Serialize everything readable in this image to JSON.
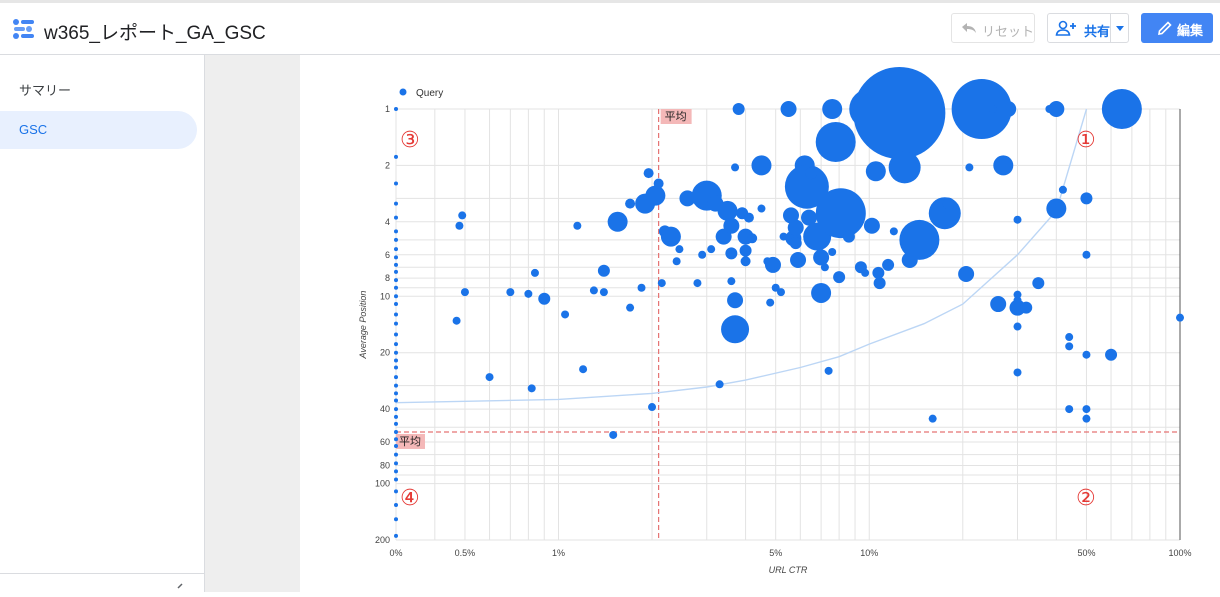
{
  "header": {
    "title": "w365_レポート_GA_GSC",
    "reset_label": "リセット",
    "share_label": "共有",
    "edit_label": "編集"
  },
  "sidebar": {
    "items": [
      {
        "label": "サマリー",
        "active": false
      },
      {
        "label": "GSC",
        "active": true
      }
    ]
  },
  "colors": {
    "accent": "#1a73e8",
    "point": "#1a73e8",
    "average_line": "#e57373",
    "nav_active_bg": "#e8f0fe",
    "edit_button": "#4285f4"
  },
  "icons": [
    "dashboard-logo-icon",
    "undo-icon",
    "person-add-icon",
    "pencil-icon",
    "chevron-down-icon",
    "collapse-icon"
  ],
  "chart_data": {
    "type": "scatter",
    "legend": {
      "series_name": "Query",
      "placement": "top-left"
    },
    "xlabel": "URL CTR",
    "ylabel": "Average Position",
    "x_scale": "log",
    "y_scale": "log-reversed",
    "xlim": [
      0.0,
      100
    ],
    "ylim": [
      1,
      200
    ],
    "x_ticks": [
      {
        "v": 0.3,
        "label": "0%"
      },
      {
        "v": 0.5,
        "label": "0.5%"
      },
      {
        "v": 1,
        "label": "1%"
      },
      {
        "v": 5,
        "label": "5%"
      },
      {
        "v": 10,
        "label": "10%"
      },
      {
        "v": 50,
        "label": "50%"
      },
      {
        "v": 100,
        "label": "100%"
      }
    ],
    "y_ticks": [
      {
        "v": 1,
        "label": "1"
      },
      {
        "v": 2,
        "label": "2"
      },
      {
        "v": 4,
        "label": "4"
      },
      {
        "v": 6,
        "label": "6"
      },
      {
        "v": 8,
        "label": "8"
      },
      {
        "v": 10,
        "label": "10"
      },
      {
        "v": 20,
        "label": "20"
      },
      {
        "v": 40,
        "label": "40"
      },
      {
        "v": 60,
        "label": "60"
      },
      {
        "v": 80,
        "label": "80"
      },
      {
        "v": 100,
        "label": "100"
      },
      {
        "v": 200,
        "label": "200"
      }
    ],
    "grid": true,
    "average_lines": {
      "x": 2.1,
      "y": 53,
      "label": "平均"
    },
    "quadrant_labels": [
      "①",
      "②",
      "③",
      "④"
    ],
    "trend_curve": [
      [
        0.3,
        37
      ],
      [
        1,
        35.5
      ],
      [
        2,
        33
      ],
      [
        3,
        30.5
      ],
      [
        4,
        28
      ],
      [
        6,
        24
      ],
      [
        8,
        21
      ],
      [
        10,
        18
      ],
      [
        15,
        14
      ],
      [
        20,
        11
      ],
      [
        30,
        6
      ],
      [
        40,
        3.5
      ],
      [
        50,
        1
      ]
    ],
    "points": [
      [
        0.3,
        1,
        2
      ],
      [
        0.3,
        1.8,
        2
      ],
      [
        0.3,
        2.5,
        2
      ],
      [
        0.3,
        3.2,
        2
      ],
      [
        0.3,
        3.8,
        2
      ],
      [
        0.3,
        4.5,
        2
      ],
      [
        0.3,
        5,
        2
      ],
      [
        0.3,
        5.6,
        2
      ],
      [
        0.3,
        6.2,
        2
      ],
      [
        0.3,
        6.8,
        2
      ],
      [
        0.3,
        7.4,
        2
      ],
      [
        0.3,
        8.2,
        2
      ],
      [
        0.3,
        9,
        2
      ],
      [
        0.3,
        10,
        2
      ],
      [
        0.3,
        11,
        2
      ],
      [
        0.3,
        12.5,
        2
      ],
      [
        0.3,
        14,
        2
      ],
      [
        0.3,
        16,
        2
      ],
      [
        0.3,
        18,
        2
      ],
      [
        0.3,
        20,
        2
      ],
      [
        0.3,
        22,
        2
      ],
      [
        0.3,
        24,
        2
      ],
      [
        0.3,
        27,
        2
      ],
      [
        0.3,
        30,
        2
      ],
      [
        0.3,
        33,
        2
      ],
      [
        0.3,
        36,
        2
      ],
      [
        0.3,
        40,
        2
      ],
      [
        0.3,
        44,
        2
      ],
      [
        0.3,
        48,
        2
      ],
      [
        0.3,
        53,
        2
      ],
      [
        0.3,
        58,
        2
      ],
      [
        0.3,
        63,
        2
      ],
      [
        0.3,
        70,
        2
      ],
      [
        0.3,
        78,
        2
      ],
      [
        0.3,
        86,
        2
      ],
      [
        0.3,
        95,
        2
      ],
      [
        0.3,
        110,
        2
      ],
      [
        0.3,
        130,
        2
      ],
      [
        0.3,
        155,
        2
      ],
      [
        0.3,
        190,
        2
      ],
      [
        0.47,
        13.5,
        4
      ],
      [
        0.48,
        4.2,
        4
      ],
      [
        0.49,
        3.7,
        4
      ],
      [
        0.5,
        9.5,
        4
      ],
      [
        0.6,
        27,
        4
      ],
      [
        0.7,
        9.5,
        4
      ],
      [
        0.8,
        9.7,
        4
      ],
      [
        0.82,
        31,
        4
      ],
      [
        0.84,
        7.5,
        4
      ],
      [
        0.9,
        10.3,
        6
      ],
      [
        1.05,
        12.5,
        4
      ],
      [
        1.15,
        4.2,
        4
      ],
      [
        1.2,
        24.5,
        4
      ],
      [
        1.3,
        9.3,
        4
      ],
      [
        1.4,
        9.5,
        4
      ],
      [
        1.4,
        7.3,
        6
      ],
      [
        1.5,
        55,
        4
      ],
      [
        1.55,
        4,
        10
      ],
      [
        1.7,
        11.5,
        4
      ],
      [
        1.7,
        3.2,
        5
      ],
      [
        1.85,
        9,
        4
      ],
      [
        1.9,
        3.2,
        10
      ],
      [
        1.95,
        2.2,
        5
      ],
      [
        2.0,
        39,
        4
      ],
      [
        2.05,
        2.9,
        10
      ],
      [
        2.1,
        2.5,
        5
      ],
      [
        2.15,
        8.5,
        4
      ],
      [
        2.2,
        4.5,
        6
      ],
      [
        2.3,
        4.8,
        10
      ],
      [
        2.4,
        6.5,
        4
      ],
      [
        2.45,
        5.6,
        4
      ],
      [
        2.6,
        3.0,
        8
      ],
      [
        2.8,
        8.5,
        4
      ],
      [
        2.9,
        6.0,
        4
      ],
      [
        3.0,
        2.9,
        15
      ],
      [
        3.1,
        5.6,
        4
      ],
      [
        3.2,
        3.2,
        8
      ],
      [
        3.3,
        29.5,
        4
      ],
      [
        3.4,
        4.8,
        8
      ],
      [
        3.5,
        3.5,
        10
      ],
      [
        3.6,
        4.2,
        8
      ],
      [
        3.6,
        5.9,
        6
      ],
      [
        3.6,
        8.3,
        4
      ],
      [
        3.7,
        10.5,
        8
      ],
      [
        3.7,
        15,
        14
      ],
      [
        3.7,
        2.05,
        4
      ],
      [
        3.8,
        1,
        6
      ],
      [
        3.9,
        3.6,
        6
      ],
      [
        4.0,
        4.8,
        8
      ],
      [
        4.0,
        5.7,
        6
      ],
      [
        4.0,
        6.5,
        5
      ],
      [
        4.1,
        3.8,
        5
      ],
      [
        4.2,
        4.9,
        5
      ],
      [
        4.5,
        3.4,
        4
      ],
      [
        4.5,
        2.0,
        10
      ],
      [
        4.7,
        6.5,
        4
      ],
      [
        4.8,
        10.8,
        4
      ],
      [
        4.9,
        6.8,
        8
      ],
      [
        5.0,
        9.0,
        4
      ],
      [
        5.2,
        9.5,
        4
      ],
      [
        5.3,
        4.8,
        4
      ],
      [
        5.5,
        1,
        8
      ],
      [
        5.6,
        3.7,
        8
      ],
      [
        5.7,
        4.9,
        8
      ],
      [
        5.8,
        5.2,
        6
      ],
      [
        5.8,
        4.3,
        8
      ],
      [
        5.9,
        6.4,
        8
      ],
      [
        6.2,
        2.0,
        10
      ],
      [
        6.3,
        2.6,
        22
      ],
      [
        6.4,
        3.8,
        8
      ],
      [
        6.5,
        2.2,
        6
      ],
      [
        6.6,
        4.6,
        8
      ],
      [
        6.8,
        4.8,
        14
      ],
      [
        7.0,
        6.2,
        8
      ],
      [
        7.0,
        9.6,
        10
      ],
      [
        7.2,
        7.0,
        4
      ],
      [
        7.6,
        5.8,
        4
      ],
      [
        7.4,
        25,
        4
      ],
      [
        7.6,
        1,
        10
      ],
      [
        7.8,
        1.5,
        20
      ],
      [
        8.0,
        7.9,
        6
      ],
      [
        8.1,
        3.6,
        25
      ],
      [
        8.6,
        4.8,
        6
      ],
      [
        9.4,
        7.0,
        6
      ],
      [
        9.7,
        7.5,
        4
      ],
      [
        10.0,
        1,
        20
      ],
      [
        10.2,
        4.2,
        8
      ],
      [
        10.5,
        2.15,
        10
      ],
      [
        10.7,
        7.5,
        6
      ],
      [
        10.8,
        8.5,
        6
      ],
      [
        11.5,
        6.8,
        6
      ],
      [
        12.0,
        4.5,
        4
      ],
      [
        12.5,
        1.05,
        46
      ],
      [
        13.0,
        2.05,
        16
      ],
      [
        13.5,
        6.4,
        8
      ],
      [
        14.5,
        5.0,
        20
      ],
      [
        16,
        45,
        4
      ],
      [
        17.5,
        3.6,
        16
      ],
      [
        18,
        3.2,
        6
      ],
      [
        20.5,
        7.6,
        8
      ],
      [
        21,
        2.05,
        4
      ],
      [
        23,
        1,
        30
      ],
      [
        25,
        1,
        4
      ],
      [
        26,
        11,
        8
      ],
      [
        27,
        2.0,
        10
      ],
      [
        28,
        1,
        8
      ],
      [
        30,
        10.5,
        4
      ],
      [
        30,
        11.5,
        8
      ],
      [
        30,
        9.8,
        4
      ],
      [
        30,
        14.5,
        4
      ],
      [
        30,
        25.5,
        4
      ],
      [
        30,
        3.9,
        4
      ],
      [
        32,
        11.5,
        6
      ],
      [
        35,
        8.5,
        6
      ],
      [
        38,
        1,
        4
      ],
      [
        40,
        1,
        8
      ],
      [
        40,
        3.4,
        10
      ],
      [
        42,
        2.7,
        4
      ],
      [
        44,
        16.5,
        4
      ],
      [
        44,
        18.5,
        4
      ],
      [
        44,
        40,
        4
      ],
      [
        50,
        3.0,
        6
      ],
      [
        50,
        6.0,
        4
      ],
      [
        50,
        20.5,
        4
      ],
      [
        50,
        40,
        4
      ],
      [
        50,
        45,
        4
      ],
      [
        60,
        20.5,
        6
      ],
      [
        65,
        1,
        20
      ],
      [
        100,
        13,
        4
      ]
    ]
  }
}
